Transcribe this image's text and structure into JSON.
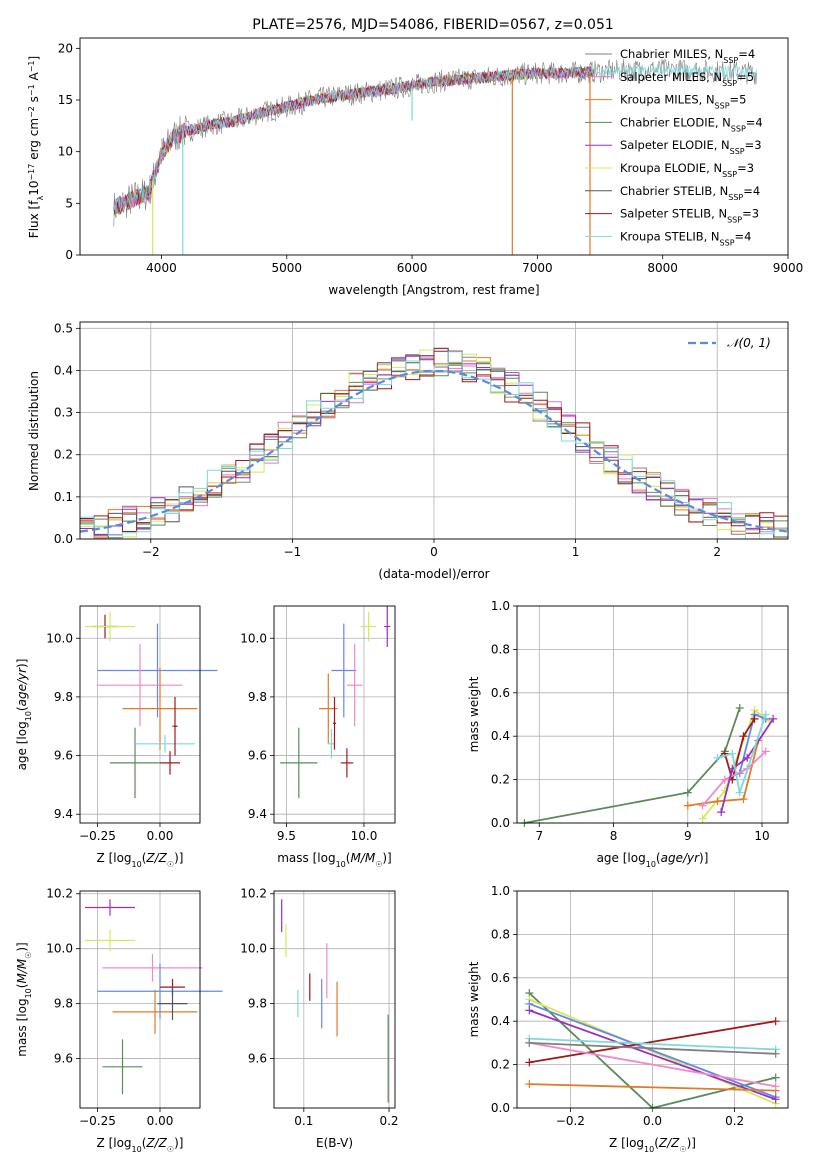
{
  "colors": {
    "chabrier_miles": "#808080",
    "salpeter_miles": "#e377c2",
    "kroupa_miles": "#e07b28",
    "chabrier_elodie": "#5a8a5a",
    "salpeter_elodie": "#9b30c0",
    "kroupa_elodie": "#d4e85a",
    "chabrier_stelib": "#555555",
    "salpeter_stelib": "#a01818",
    "kroupa_stelib": "#7fd8dc",
    "gauss": "#5b8bd8",
    "blue": "#6688e8",
    "pink": "#f088c8"
  },
  "chart_data": [
    {
      "type": "line",
      "title": "PLATE=2576, MJD=54086, FIBERID=0567, z=0.051",
      "xlabel": "wavelength [Angstrom, rest frame]",
      "ylabel": "Flux [fλ10⁻¹⁷ erg cm⁻² s⁻¹ A⁻¹]",
      "xlim": [
        3350,
        9000
      ],
      "ylim": [
        0,
        21
      ],
      "xticks": [
        4000,
        5000,
        6000,
        7000,
        8000,
        9000
      ],
      "yticks": [
        0,
        5,
        10,
        15,
        20
      ],
      "legend_position": "top-right",
      "legend": [
        {
          "name": "Chabrier MILES, N_SSP=4",
          "base": "Chabrier MILES, N",
          "sub": "SSP",
          "tail": "=4"
        },
        {
          "name": "Salpeter MILES, N_SSP=5",
          "base": "Salpeter MILES, N",
          "sub": "SSP",
          "tail": "=5"
        },
        {
          "name": "Kroupa MILES, N_SSP=5",
          "base": "Kroupa MILES, N",
          "sub": "SSP",
          "tail": "=5"
        },
        {
          "name": "Chabrier ELODIE, N_SSP=4",
          "base": "Chabrier ELODIE, N",
          "sub": "SSP",
          "tail": "=4"
        },
        {
          "name": "Salpeter ELODIE, N_SSP=3",
          "base": "Salpeter ELODIE, N",
          "sub": "SSP",
          "tail": "=3"
        },
        {
          "name": "Kroupa ELODIE, N_SSP=3",
          "base": "Kroupa ELODIE, N",
          "sub": "SSP",
          "tail": "=3"
        },
        {
          "name": "Chabrier STELIB, N_SSP=4",
          "base": "Chabrier STELIB, N",
          "sub": "SSP",
          "tail": "=4"
        },
        {
          "name": "Salpeter STELIB, N_SSP=3",
          "base": "Salpeter STELIB, N",
          "sub": "SSP",
          "tail": "=3"
        },
        {
          "name": "Kroupa STELIB, N_SSP=4",
          "base": "Kroupa STELIB, N",
          "sub": "SSP",
          "tail": "=4"
        }
      ],
      "continuum": {
        "x": [
          3620,
          3700,
          3800,
          3900,
          4000,
          4100,
          4200,
          4400,
          4600,
          4800,
          5000,
          5200,
          5400,
          5600,
          5800,
          6000,
          6200,
          6400,
          6600,
          6800,
          7000,
          7200,
          7400,
          7600,
          7800,
          8000,
          8200,
          8400,
          8600,
          8750
        ],
        "y": [
          4.5,
          5.0,
          5.6,
          6.0,
          9.8,
          11.5,
          12.0,
          12.6,
          13.0,
          13.8,
          14.3,
          15.0,
          15.4,
          15.7,
          16.0,
          16.4,
          16.8,
          17.0,
          17.2,
          17.4,
          17.6,
          17.6,
          17.7,
          17.8,
          17.9,
          17.9,
          17.9,
          17.8,
          17.7,
          17.6
        ]
      },
      "dips": [
        {
          "x": 4170,
          "y": 0,
          "color": "kroupa_stelib"
        },
        {
          "x": 3930,
          "y": 0,
          "color": "kroupa_elodie"
        },
        {
          "x": 6800,
          "y": 0,
          "color": "kroupa_miles"
        },
        {
          "x": 7420,
          "y": 0,
          "color": "kroupa_miles"
        },
        {
          "x": 6000,
          "y": 13,
          "color": "kroupa_stelib"
        }
      ]
    },
    {
      "type": "histogram",
      "xlabel": "(data-model)/error",
      "ylabel": "Normed distribution",
      "xlim": [
        -2.5,
        2.5
      ],
      "ylim": [
        0,
        0.515
      ],
      "xticks": [
        -2,
        -1,
        0,
        1,
        2
      ],
      "yticks": [
        0.0,
        0.1,
        0.2,
        0.3,
        0.4,
        0.5
      ],
      "grid": true,
      "legend_position": "top-right",
      "legend": [
        "𝒩(0, 1)"
      ],
      "reference_curve": "normal(0,1) pdf"
    },
    {
      "type": "errorbar",
      "xlabel": "Z [log10(Z/Z☉)]",
      "ylabel": "age  [log10(age/yr)]",
      "xlim": [
        -0.32,
        0.16
      ],
      "ylim": [
        9.37,
        10.11
      ],
      "xticks": [
        -0.25,
        0.0
      ],
      "yticks": [
        9.4,
        9.6,
        9.8,
        10.0
      ],
      "grid": true,
      "points": [
        {
          "x": -0.22,
          "y": 10.04,
          "xerr": 0.05,
          "yerr": 0.04,
          "color": "salpeter_stelib"
        },
        {
          "x": -0.2,
          "y": 10.04,
          "xerr": 0.1,
          "yerr": 0.05,
          "color": "kroupa_elodie"
        },
        {
          "x": -0.01,
          "y": 9.89,
          "xerr": 0.24,
          "yerr": 0.16,
          "color": "blue"
        },
        {
          "x": -0.08,
          "y": 9.84,
          "xerr": 0.17,
          "yerr": 0.14,
          "color": "pink"
        },
        {
          "x": 0.0,
          "y": 9.76,
          "xerr": 0.15,
          "yerr": 0.14,
          "color": "kroupa_miles"
        },
        {
          "x": -0.1,
          "y": 9.575,
          "xerr": 0.1,
          "yerr": 0.12,
          "color": "chabrier_elodie"
        },
        {
          "x": 0.02,
          "y": 9.64,
          "xerr": 0.12,
          "yerr": 0.03,
          "color": "kroupa_stelib"
        },
        {
          "x": 0.04,
          "y": 9.575,
          "xerr": 0.04,
          "yerr": 0.04,
          "color": "salpeter_stelib"
        },
        {
          "x": 0.06,
          "y": 9.7,
          "xerr": 0.01,
          "yerr": 0.1,
          "color": "salpeter_stelib"
        }
      ]
    },
    {
      "type": "errorbar",
      "xlabel": "mass [log10(M/M☉)]",
      "ylabel": "",
      "xlim": [
        9.42,
        10.2
      ],
      "ylim": [
        9.37,
        10.11
      ],
      "xticks": [
        9.5,
        10.0
      ],
      "yticks": [
        9.4,
        9.6,
        9.8,
        10.0
      ],
      "grid": true,
      "points": [
        {
          "x": 10.15,
          "y": 10.04,
          "xerr": 0.02,
          "yerr": 0.07,
          "color": "salpeter_elodie"
        },
        {
          "x": 10.03,
          "y": 10.04,
          "xerr": 0.05,
          "yerr": 0.05,
          "color": "kroupa_elodie"
        },
        {
          "x": 9.87,
          "y": 9.89,
          "xerr": 0.08,
          "yerr": 0.16,
          "color": "blue"
        },
        {
          "x": 9.94,
          "y": 9.84,
          "xerr": 0.05,
          "yerr": 0.14,
          "color": "pink"
        },
        {
          "x": 9.77,
          "y": 9.76,
          "xerr": 0.06,
          "yerr": 0.12,
          "color": "kroupa_miles"
        },
        {
          "x": 9.58,
          "y": 9.575,
          "xerr": 0.12,
          "yerr": 0.12,
          "color": "chabrier_elodie"
        },
        {
          "x": 9.79,
          "y": 9.64,
          "xerr": 0.02,
          "yerr": 0.05,
          "color": "kroupa_stelib"
        },
        {
          "x": 9.89,
          "y": 9.575,
          "xerr": 0.04,
          "yerr": 0.05,
          "color": "salpeter_stelib"
        },
        {
          "x": 9.81,
          "y": 9.71,
          "xerr": 0.01,
          "yerr": 0.09,
          "color": "salpeter_stelib"
        }
      ]
    },
    {
      "type": "line",
      "xlabel": "age  [log10(age/yr)]",
      "ylabel": "mass weight",
      "xlim": [
        6.7,
        10.35
      ],
      "ylim": [
        0,
        1
      ],
      "xticks": [
        7,
        8,
        9,
        10
      ],
      "yticks": [
        0.0,
        0.2,
        0.4,
        0.6,
        0.8,
        1.0
      ],
      "grid": true,
      "series": [
        {
          "color": "chabrier_elodie",
          "x": [
            6.8,
            9.0,
            9.5,
            9.7
          ],
          "y": [
            0.0,
            0.14,
            0.33,
            0.53
          ]
        },
        {
          "color": "kroupa_elodie",
          "x": [
            9.2,
            9.5,
            9.9,
            10.1
          ],
          "y": [
            0.02,
            0.15,
            0.52,
            0.47
          ]
        },
        {
          "color": "blue",
          "x": [
            9.5,
            9.7,
            9.9,
            10.05
          ],
          "y": [
            0.2,
            0.23,
            0.5,
            0.48
          ]
        },
        {
          "color": "salpeter_stelib",
          "x": [
            9.5,
            9.6,
            9.75,
            9.9
          ],
          "y": [
            0.32,
            0.2,
            0.4,
            0.48
          ]
        },
        {
          "color": "kroupa_miles",
          "x": [
            9.0,
            9.4,
            9.75,
            9.95
          ],
          "y": [
            0.08,
            0.1,
            0.11,
            0.38
          ]
        },
        {
          "color": "pink",
          "x": [
            9.2,
            9.5,
            9.8,
            10.05
          ],
          "y": [
            0.08,
            0.2,
            0.25,
            0.33
          ]
        },
        {
          "color": "salpeter_elodie",
          "x": [
            9.45,
            9.6,
            9.8,
            10.15
          ],
          "y": [
            0.05,
            0.25,
            0.3,
            0.48
          ]
        },
        {
          "color": "kroupa_stelib",
          "x": [
            9.4,
            9.6,
            9.7,
            10.05
          ],
          "y": [
            0.3,
            0.32,
            0.14,
            0.5
          ]
        }
      ]
    },
    {
      "type": "errorbar",
      "xlabel": "Z [log10(Z/Z☉)]",
      "ylabel": "mass [log10(M/M☉)]",
      "xlim": [
        -0.32,
        0.16
      ],
      "ylim": [
        9.42,
        10.21
      ],
      "xticks": [
        -0.25,
        0.0
      ],
      "yticks": [
        9.6,
        9.8,
        10.0,
        10.2
      ],
      "grid": true,
      "points": [
        {
          "x": -0.2,
          "y": 10.15,
          "xerr": 0.1,
          "yerr": 0.03,
          "color": "salpeter_elodie"
        },
        {
          "x": -0.2,
          "y": 10.03,
          "xerr": 0.1,
          "yerr": 0.04,
          "color": "kroupa_elodie"
        },
        {
          "x": -0.03,
          "y": 9.93,
          "xerr": 0.2,
          "yerr": 0.05,
          "color": "pink"
        },
        {
          "x": 0.0,
          "y": 9.845,
          "xerr": 0.25,
          "yerr": 0.1,
          "color": "blue"
        },
        {
          "x": -0.02,
          "y": 9.77,
          "xerr": 0.17,
          "yerr": 0.08,
          "color": "kroupa_miles"
        },
        {
          "x": -0.15,
          "y": 9.57,
          "xerr": 0.08,
          "yerr": 0.1,
          "color": "chabrier_elodie"
        },
        {
          "x": 0.05,
          "y": 9.86,
          "xerr": 0.05,
          "yerr": 0.03,
          "color": "salpeter_stelib"
        },
        {
          "x": 0.05,
          "y": 9.8,
          "xerr": 0.06,
          "yerr": 0.06,
          "color": "chabrier_stelib"
        }
      ]
    },
    {
      "type": "errorbar",
      "xlabel": "E(B-V)",
      "ylabel": "",
      "xlim": [
        0.065,
        0.207
      ],
      "ylim": [
        9.42,
        10.21
      ],
      "xticks": [
        0.1,
        0.2
      ],
      "yticks": [
        9.6,
        9.8,
        10.0,
        10.2
      ],
      "grid": true,
      "points": [
        {
          "x": 0.074,
          "y": 10.12,
          "xerr": 0,
          "yerr": 0.06,
          "color": "salpeter_elodie"
        },
        {
          "x": 0.079,
          "y": 10.03,
          "xerr": 0,
          "yerr": 0.06,
          "color": "kroupa_elodie"
        },
        {
          "x": 0.093,
          "y": 9.8,
          "xerr": 0,
          "yerr": 0.05,
          "color": "kroupa_stelib"
        },
        {
          "x": 0.107,
          "y": 9.86,
          "xerr": 0,
          "yerr": 0.05,
          "color": "salpeter_stelib"
        },
        {
          "x": 0.121,
          "y": 9.8,
          "xerr": 0,
          "yerr": 0.09,
          "color": "blue"
        },
        {
          "x": 0.127,
          "y": 9.92,
          "xerr": 0,
          "yerr": 0.1,
          "color": "pink"
        },
        {
          "x": 0.139,
          "y": 9.78,
          "xerr": 0,
          "yerr": 0.1,
          "color": "kroupa_miles"
        },
        {
          "x": 0.199,
          "y": 9.6,
          "xerr": 0,
          "yerr": 0.16,
          "color": "chabrier_elodie"
        }
      ]
    },
    {
      "type": "line",
      "xlabel": "Z [log10(Z/Z☉)]",
      "ylabel": "mass weight",
      "xlim": [
        -0.33,
        0.33
      ],
      "ylim": [
        0,
        1
      ],
      "xticks": [
        -0.2,
        0.0,
        0.2
      ],
      "yticks": [
        0.0,
        0.2,
        0.4,
        0.6,
        0.8,
        1.0
      ],
      "grid": true,
      "series": [
        {
          "color": "chabrier_elodie",
          "x": [
            -0.3,
            0.0,
            0.3
          ],
          "y": [
            0.53,
            0.0,
            0.14
          ]
        },
        {
          "color": "kroupa_elodie",
          "x": [
            -0.3,
            0.3
          ],
          "y": [
            0.5,
            0.02
          ]
        },
        {
          "color": "blue",
          "x": [
            -0.3,
            0.3
          ],
          "y": [
            0.48,
            0.05
          ]
        },
        {
          "color": "salpeter_elodie",
          "x": [
            -0.3,
            0.3
          ],
          "y": [
            0.45,
            0.04
          ]
        },
        {
          "color": "salpeter_stelib",
          "x": [
            -0.3,
            0.3
          ],
          "y": [
            0.21,
            0.4
          ]
        },
        {
          "color": "kroupa_miles",
          "x": [
            -0.3,
            0.3
          ],
          "y": [
            0.11,
            0.08
          ]
        },
        {
          "color": "pink",
          "x": [
            -0.3,
            0.3
          ],
          "y": [
            0.3,
            0.1
          ]
        },
        {
          "color": "kroupa_stelib",
          "x": [
            -0.3,
            0.3
          ],
          "y": [
            0.32,
            0.27
          ]
        },
        {
          "color": "chabrier_miles",
          "x": [
            -0.3,
            0.3
          ],
          "y": [
            0.3,
            0.25
          ]
        }
      ]
    }
  ]
}
